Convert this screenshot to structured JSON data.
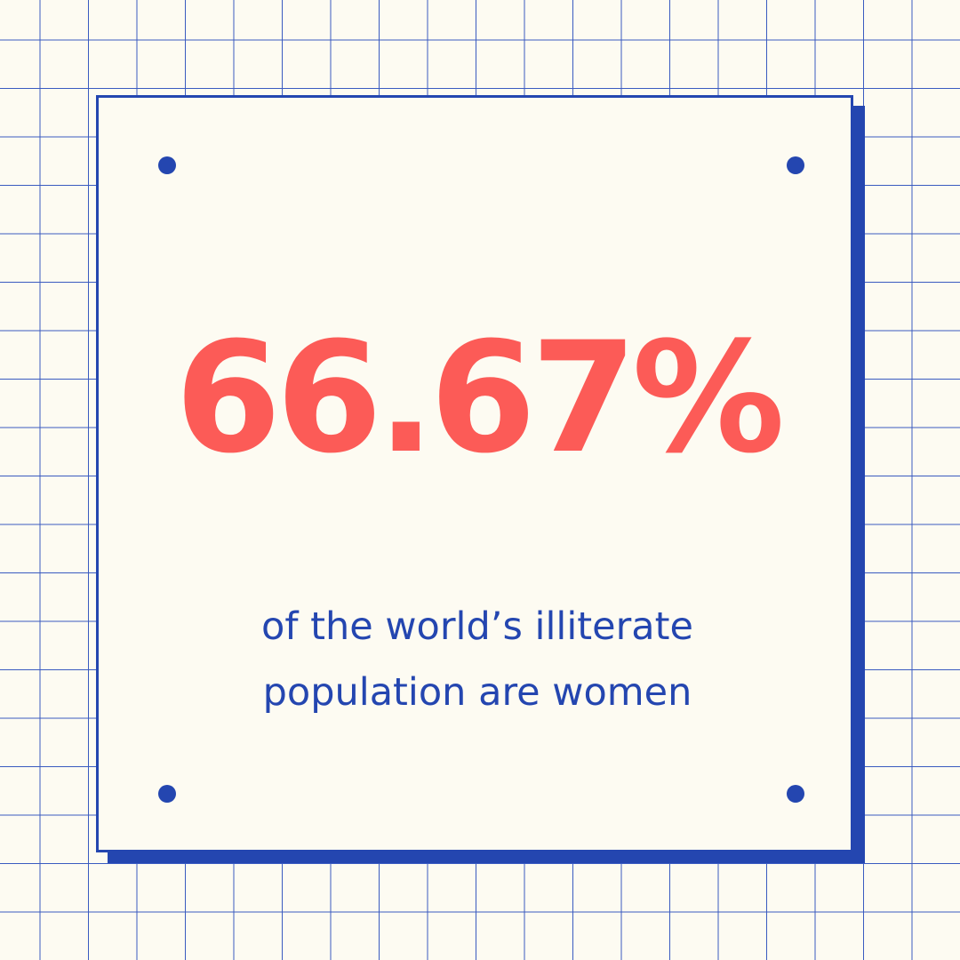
{
  "stat": {
    "value": "66.67%"
  },
  "caption": {
    "line1": "of the world’s illiterate",
    "line2": "population are women"
  },
  "colors": {
    "background": "#fdfbf2",
    "accent_blue": "#2446b0",
    "stat_red": "#fc5b57"
  }
}
